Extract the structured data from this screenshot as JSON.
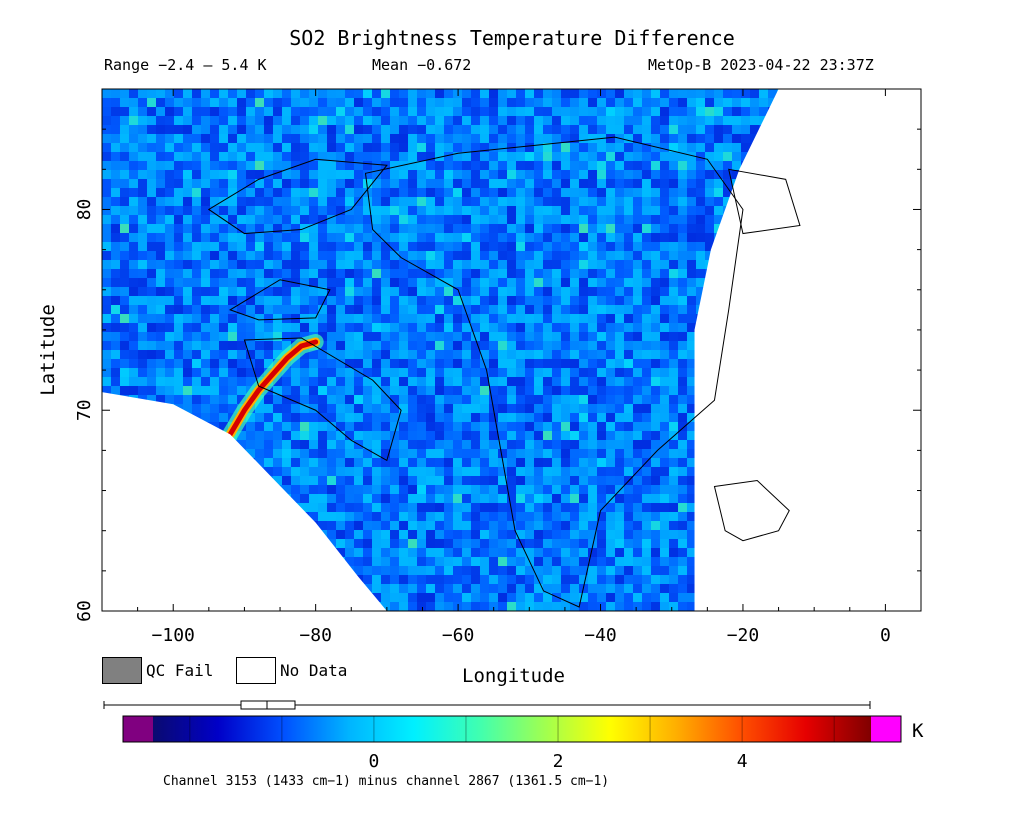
{
  "header": {
    "title": "SO2 Brightness Temperature Difference",
    "range": "Range −2.4 – 5.4 K",
    "mean": "Mean −0.672",
    "satellite": "MetOp-B 2023-04-22 23:37Z"
  },
  "legend": {
    "qc_fail": "QC Fail",
    "no_data": "No Data",
    "qc_fail_color": "#808080",
    "no_data_color": "#ffffff"
  },
  "colorbar": {
    "unit": "K",
    "tick_labels": [
      "0",
      "2",
      "4"
    ],
    "tick_values": [
      0,
      2,
      4
    ],
    "vmin": -2.4,
    "vmax": 5.4,
    "under_color": "#800080",
    "over_color": "#ff00ff",
    "colormap": [
      "#0a0a70",
      "#0000c8",
      "#0050ff",
      "#00b4ff",
      "#00f0ff",
      "#40ffb0",
      "#a0ff50",
      "#ffff00",
      "#ffb000",
      "#ff5000",
      "#e60000",
      "#800000"
    ]
  },
  "footnote": "Channel 3153 (1433 cm−1) minus channel 2867 (1361.5 cm−1)",
  "chart_data": {
    "type": "heatmap",
    "title": "SO2 Brightness Temperature Difference",
    "xlabel": "Longitude",
    "ylabel": "Latitude",
    "xlim": [
      -110,
      5
    ],
    "ylim": [
      60,
      86
    ],
    "x_ticks": [
      -100,
      -80,
      -60,
      -40,
      -20,
      0
    ],
    "x_tick_labels": [
      "−100",
      "−80",
      "−60",
      "−40",
      "−20",
      "0"
    ],
    "y_ticks": [
      60,
      70,
      80
    ],
    "y_tick_labels": [
      "60",
      "70",
      "80"
    ],
    "value_range": [
      -2.4,
      5.4
    ],
    "mean": -0.672,
    "units": "K",
    "background_field_value": -0.7,
    "features": [
      {
        "kind": "plume",
        "lon_lat": [
          [
            -92,
            68.8
          ],
          [
            -90,
            70.0
          ],
          [
            -88,
            71.0
          ],
          [
            -86,
            71.8
          ],
          [
            -84,
            72.6
          ],
          [
            -82,
            73.2
          ],
          [
            -80,
            73.4
          ]
        ],
        "value": 4.8
      }
    ],
    "data_bounds": {
      "left_gap_edge": [
        [
          -110,
          70.9
        ],
        [
          -100,
          70.3
        ],
        [
          -92,
          68.8
        ],
        [
          -86,
          66.6
        ],
        [
          -80,
          64.4
        ],
        [
          -74,
          61.7
        ],
        [
          -70,
          60
        ]
      ],
      "right_gap_edge": [
        [
          -26.8,
          60
        ],
        [
          -26.8,
          74
        ],
        [
          -24.5,
          78
        ],
        [
          -20.5,
          82
        ],
        [
          -15,
          86
        ]
      ]
    }
  }
}
